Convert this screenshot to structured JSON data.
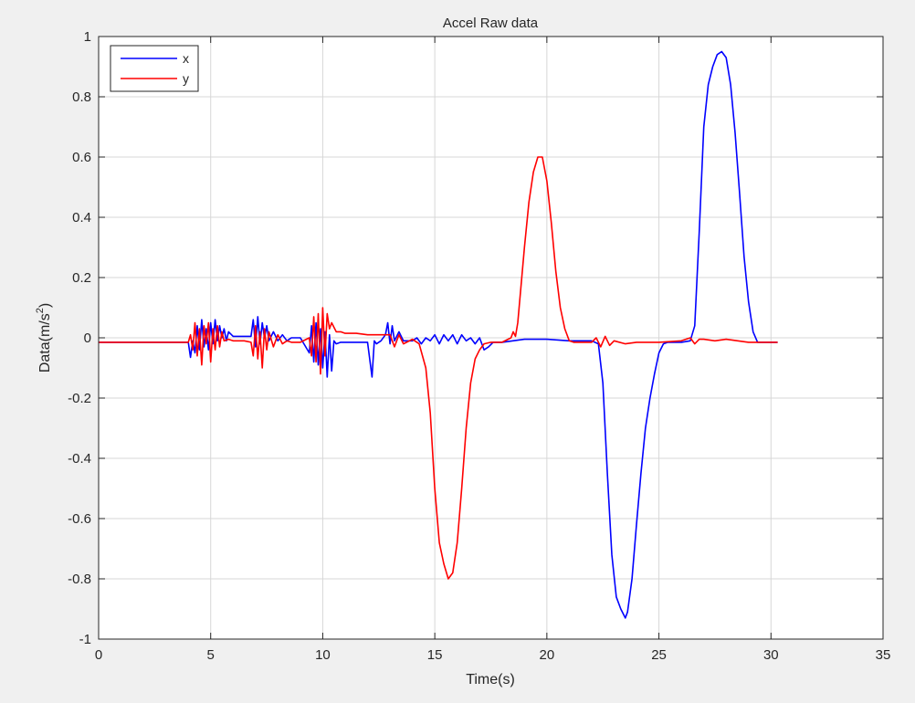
{
  "chart_data": {
    "type": "line",
    "title": "Accel Raw data",
    "xlabel": "Time(s)",
    "ylabel": "Data(m/s",
    "ylabel_superscript": "2",
    "ylabel_close": ")",
    "xlim": [
      0,
      35
    ],
    "ylim": [
      -1,
      1
    ],
    "xticks": [
      0,
      5,
      10,
      15,
      20,
      25,
      30,
      35
    ],
    "yticks": [
      -1,
      -0.8,
      -0.6,
      -0.4,
      -0.2,
      0,
      0.2,
      0.4,
      0.6,
      0.8,
      1
    ],
    "xtick_labels": [
      "0",
      "5",
      "10",
      "15",
      "20",
      "25",
      "30",
      "35"
    ],
    "ytick_labels": [
      "-1",
      "-0.8",
      "-0.6",
      "-0.4",
      "-0.2",
      "0",
      "0.2",
      "0.4",
      "0.6",
      "0.8",
      "1"
    ],
    "grid": true,
    "legend_position": "top-left",
    "series": [
      {
        "name": "x",
        "color": "#0000ff",
        "x": [
          0,
          2,
          4,
          4.1,
          4.2,
          4.3,
          4.4,
          4.5,
          4.6,
          4.7,
          4.8,
          4.9,
          5.0,
          5.1,
          5.2,
          5.3,
          5.4,
          5.5,
          5.6,
          5.7,
          5.8,
          6.0,
          6.5,
          6.8,
          6.9,
          7.0,
          7.1,
          7.2,
          7.3,
          7.4,
          7.5,
          7.6,
          7.8,
          8.0,
          8.2,
          8.4,
          8.6,
          9.0,
          9.4,
          9.5,
          9.6,
          9.7,
          9.8,
          9.9,
          10.0,
          10.1,
          10.2,
          10.3,
          10.4,
          10.5,
          10.6,
          10.8,
          11.0,
          11.5,
          12.0,
          12.2,
          12.3,
          12.4,
          12.6,
          12.8,
          12.9,
          13.0,
          13.1,
          13.2,
          13.4,
          13.6,
          14.0,
          14.2,
          14.4,
          14.6,
          14.8,
          15.0,
          15.2,
          15.4,
          15.6,
          15.8,
          16.0,
          16.2,
          16.4,
          16.6,
          16.8,
          17.0,
          17.2,
          17.4,
          17.6,
          18.0,
          19.0,
          20.0,
          21.0,
          22.0,
          22.3,
          22.5,
          22.7,
          22.9,
          23.1,
          23.3,
          23.5,
          23.6,
          23.8,
          24.0,
          24.2,
          24.4,
          24.6,
          24.8,
          25.0,
          25.2,
          25.4,
          25.7,
          26.0,
          26.4,
          26.6,
          26.8,
          27.0,
          27.2,
          27.4,
          27.6,
          27.8,
          28.0,
          28.2,
          28.4,
          28.6,
          28.8,
          29.0,
          29.2,
          29.4,
          29.6,
          30.0,
          30.3
        ],
        "y": [
          -0.015,
          -0.015,
          -0.015,
          -0.065,
          -0.01,
          -0.05,
          0.04,
          -0.04,
          0.06,
          -0.03,
          0.03,
          -0.04,
          0.05,
          -0.02,
          0.06,
          -0.01,
          0.04,
          0.0,
          0.03,
          -0.01,
          0.02,
          0.005,
          0.005,
          0.005,
          0.06,
          -0.03,
          0.07,
          -0.02,
          0.05,
          0.0,
          0.04,
          -0.01,
          0.02,
          -0.01,
          0.01,
          -0.01,
          0.0,
          0.0,
          -0.05,
          0.04,
          -0.08,
          0.05,
          -0.09,
          0.03,
          -0.1,
          0.02,
          -0.13,
          0.01,
          -0.11,
          -0.01,
          -0.02,
          -0.015,
          -0.015,
          -0.015,
          -0.015,
          -0.13,
          -0.01,
          -0.02,
          -0.01,
          0.01,
          0.05,
          -0.02,
          0.04,
          -0.01,
          0.02,
          -0.01,
          -0.01,
          0.0,
          -0.02,
          0.0,
          -0.01,
          0.01,
          -0.02,
          0.01,
          -0.01,
          0.01,
          -0.02,
          0.01,
          -0.01,
          0.0,
          -0.02,
          0.0,
          -0.04,
          -0.03,
          -0.015,
          -0.015,
          -0.005,
          -0.005,
          -0.01,
          -0.01,
          -0.02,
          -0.15,
          -0.45,
          -0.72,
          -0.86,
          -0.9,
          -0.93,
          -0.91,
          -0.8,
          -0.62,
          -0.45,
          -0.3,
          -0.2,
          -0.12,
          -0.05,
          -0.02,
          -0.015,
          -0.015,
          -0.015,
          -0.01,
          0.04,
          0.35,
          0.7,
          0.84,
          0.9,
          0.94,
          0.95,
          0.93,
          0.84,
          0.68,
          0.48,
          0.27,
          0.12,
          0.02,
          -0.015,
          -0.015,
          -0.015,
          -0.015
        ]
      },
      {
        "name": "y",
        "color": "#ff0000",
        "x": [
          0,
          2,
          4,
          4.1,
          4.2,
          4.3,
          4.4,
          4.5,
          4.6,
          4.7,
          4.8,
          4.9,
          5.0,
          5.1,
          5.2,
          5.3,
          5.4,
          5.5,
          5.6,
          5.8,
          6.0,
          6.5,
          6.8,
          6.9,
          7.0,
          7.1,
          7.2,
          7.3,
          7.4,
          7.5,
          7.6,
          7.8,
          8.0,
          8.2,
          8.4,
          8.6,
          9.0,
          9.4,
          9.5,
          9.6,
          9.7,
          9.8,
          9.9,
          10.0,
          10.1,
          10.2,
          10.3,
          10.4,
          10.6,
          10.8,
          11.0,
          11.5,
          12.0,
          12.5,
          13.0,
          13.2,
          13.4,
          13.6,
          14.0,
          14.3,
          14.6,
          14.8,
          15.0,
          15.2,
          15.4,
          15.6,
          15.8,
          16.0,
          16.2,
          16.4,
          16.6,
          16.8,
          17.0,
          17.2,
          17.5,
          18.0,
          18.4,
          18.5,
          18.6,
          18.7,
          19.0,
          19.2,
          19.4,
          19.6,
          19.8,
          20.0,
          20.2,
          20.4,
          20.6,
          20.8,
          21.0,
          21.2,
          22.0,
          22.2,
          22.4,
          22.6,
          22.8,
          23.0,
          23.5,
          24.0,
          25.0,
          26.0,
          26.4,
          26.6,
          26.8,
          27.0,
          27.5,
          28.0,
          29.0,
          30.0,
          30.3
        ],
        "y": [
          -0.015,
          -0.015,
          -0.015,
          0.01,
          -0.04,
          0.05,
          -0.06,
          0.03,
          -0.09,
          0.04,
          -0.02,
          0.05,
          -0.08,
          0.03,
          -0.04,
          0.04,
          -0.03,
          0.02,
          -0.01,
          -0.005,
          -0.01,
          -0.01,
          -0.015,
          -0.06,
          0.04,
          -0.07,
          0.02,
          -0.1,
          0.03,
          -0.04,
          0.02,
          -0.03,
          0.01,
          -0.02,
          -0.01,
          -0.015,
          -0.015,
          0.0,
          -0.06,
          0.07,
          -0.08,
          0.08,
          -0.12,
          0.1,
          -0.06,
          0.08,
          0.03,
          0.05,
          0.02,
          0.02,
          0.015,
          0.015,
          0.01,
          0.01,
          0.01,
          -0.03,
          0.01,
          -0.02,
          -0.005,
          -0.02,
          -0.1,
          -0.25,
          -0.5,
          -0.68,
          -0.75,
          -0.8,
          -0.78,
          -0.68,
          -0.5,
          -0.3,
          -0.15,
          -0.07,
          -0.04,
          -0.02,
          -0.015,
          -0.015,
          0.0,
          0.02,
          0.005,
          0.05,
          0.3,
          0.45,
          0.55,
          0.6,
          0.6,
          0.52,
          0.38,
          0.22,
          0.1,
          0.03,
          -0.01,
          -0.015,
          -0.015,
          0.0,
          -0.03,
          0.005,
          -0.025,
          -0.01,
          -0.02,
          -0.015,
          -0.015,
          -0.01,
          0.0,
          -0.02,
          -0.005,
          -0.005,
          -0.01,
          -0.005,
          -0.015,
          -0.015,
          -0.015
        ]
      }
    ]
  }
}
